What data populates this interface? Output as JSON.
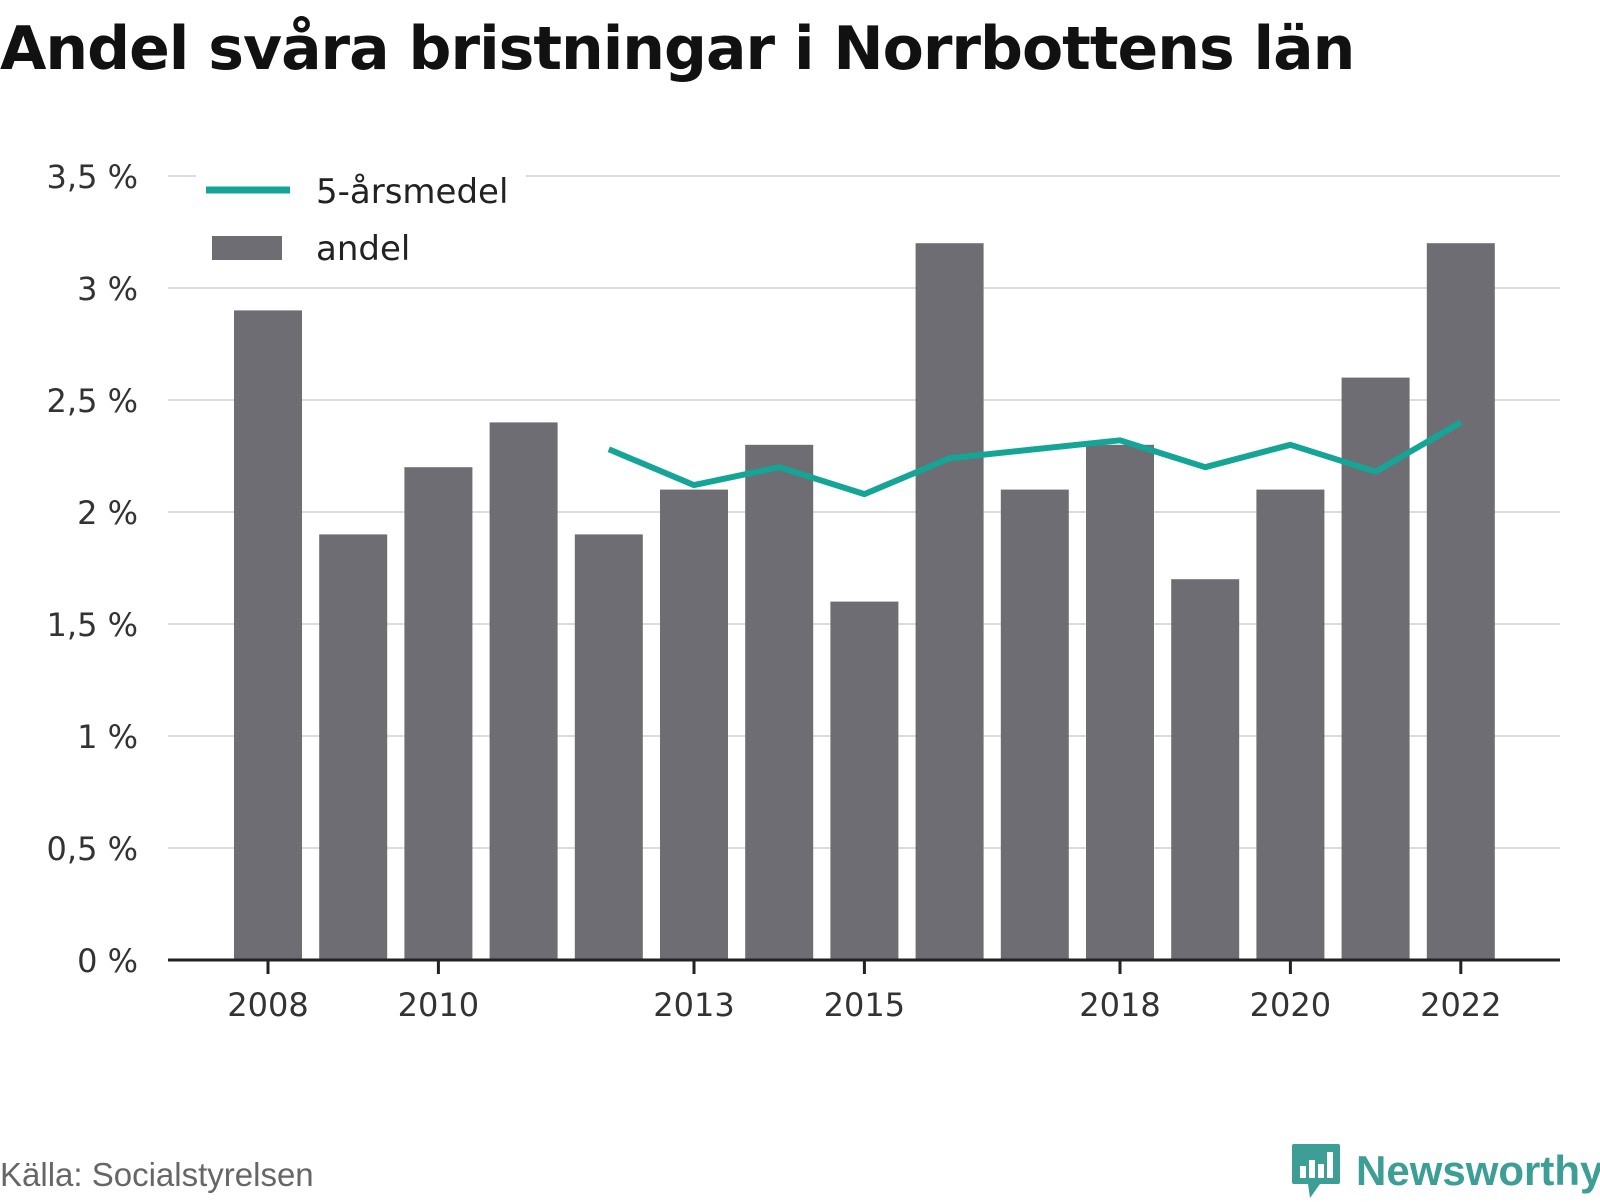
{
  "title": "Andel svåra bristningar i Norrbottens län",
  "source": "Källa: Socialstyrelsen",
  "brand": "Newsworthy",
  "colors": {
    "bars": "#6e6d74",
    "line": "#14a596",
    "brand": "#3d9e95",
    "grid": "#dcdcdc",
    "axis": "#222222"
  },
  "chart_data": {
    "type": "bar",
    "x": [
      2008,
      2009,
      2010,
      2011,
      2012,
      2013,
      2014,
      2015,
      2016,
      2017,
      2018,
      2019,
      2020,
      2021,
      2022
    ],
    "x_tick_labels": [
      "2008",
      "2010",
      "2013",
      "2015",
      "2018",
      "2020",
      "2022"
    ],
    "y_tick_labels": [
      "0 %",
      "0,5 %",
      "1 %",
      "1,5 %",
      "2 %",
      "2,5 %",
      "3 %",
      "3,5 %"
    ],
    "ylim": [
      0,
      3.5
    ],
    "grid": true,
    "legend_position": "top-left",
    "series": [
      {
        "name": "andel",
        "type": "bar",
        "values": [
          2.9,
          1.9,
          2.2,
          2.4,
          1.9,
          2.1,
          2.3,
          1.6,
          3.2,
          2.1,
          2.3,
          1.7,
          2.1,
          2.6,
          3.2
        ]
      },
      {
        "name": "5-årsmedel",
        "type": "line",
        "values": [
          null,
          null,
          null,
          null,
          2.28,
          2.12,
          2.2,
          2.08,
          2.24,
          2.28,
          2.32,
          2.2,
          2.3,
          2.18,
          2.4
        ]
      }
    ]
  }
}
